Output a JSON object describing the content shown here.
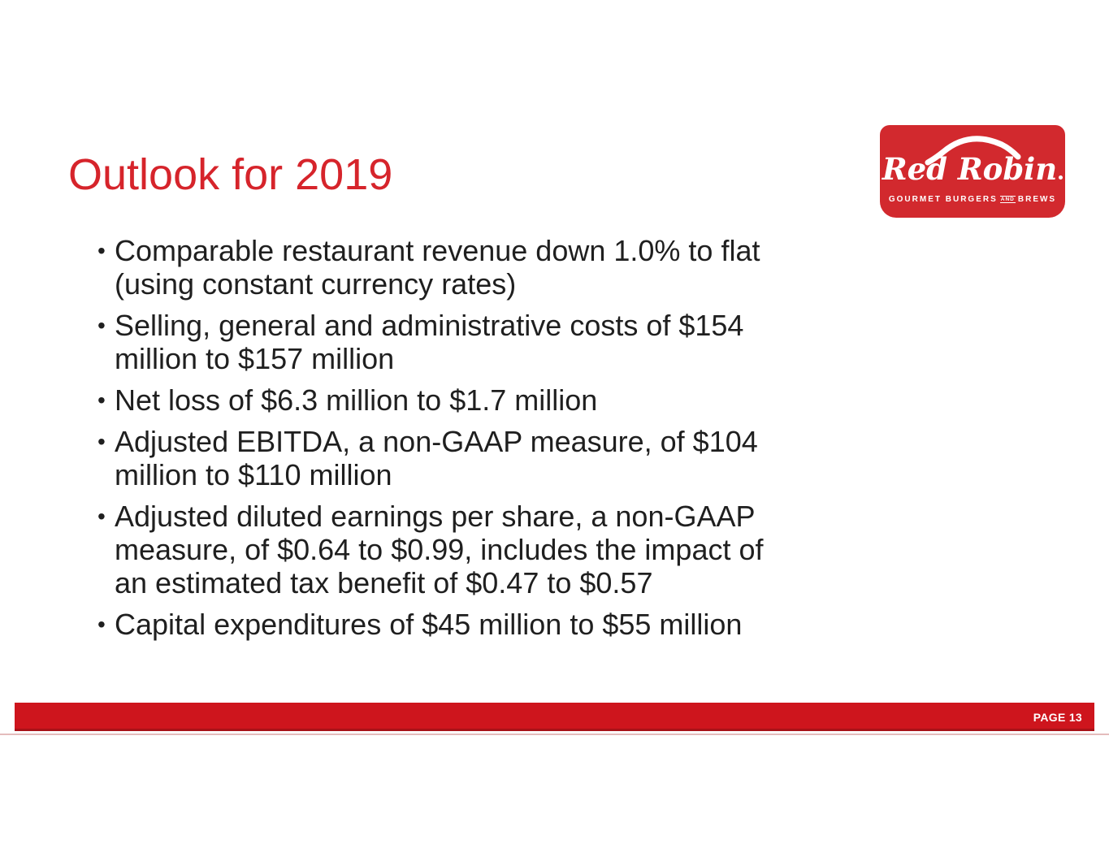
{
  "slide": {
    "title": "Outlook for 2019",
    "bullet_char": "•",
    "bullets": [
      "Comparable restaurant revenue down 1.0% to flat (using constant currency rates)",
      "Selling, general and administrative costs of $154 million to $157 million",
      "Net loss of $6.3 million to $1.7 million",
      "Adjusted EBITDA, a non-GAAP measure, of $104 million to $110 million",
      "Adjusted diluted earnings per share, a non-GAAP measure, of $0.64 to $0.99, includes the impact of an estimated tax benefit of $0.47 to $0.57",
      "Capital expenditures of $45 million to $55 million"
    ]
  },
  "logo": {
    "brand": "Red Robin",
    "tagline_left": "GOURMET BURGERS",
    "tagline_and": "AND",
    "tagline_right": "BREWS"
  },
  "footer": {
    "page_label": "PAGE 13"
  },
  "colors": {
    "title_red": "#d6242b",
    "bar_red": "#ce151d",
    "bar_red_dark": "#a81117",
    "logo_red": "#d2292e",
    "text": "#1f1f1f"
  }
}
